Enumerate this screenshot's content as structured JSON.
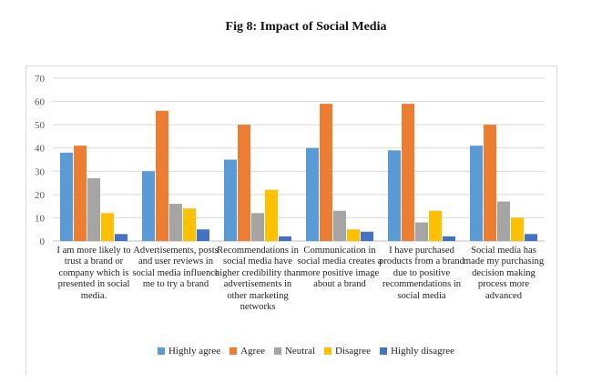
{
  "figure_title": "Fig 8: Impact of Social Media",
  "chart_data": {
    "type": "bar",
    "title": "Fig 8: Impact of Social Media",
    "xlabel": "",
    "ylabel": "",
    "ylim": [
      0,
      70
    ],
    "yticks": [
      0,
      10,
      20,
      30,
      40,
      50,
      60,
      70
    ],
    "grid": true,
    "legend_position": "bottom",
    "categories": [
      "I am more likely to trust a brand or company which is presented in social media.",
      "Advertisements, posts and user reviews in social media influence me to try a brand",
      "Recommendations in social media have higher credibility than advertisements in other marketing networks",
      "Communication in social media creates a more positive image about a brand",
      "I have purchased products from a brand due to positive recommendations in social media",
      "Social media has made my purchasing decision making process more advanced"
    ],
    "series": [
      {
        "name": "Highly agree",
        "color": "#5B9BD5",
        "values": [
          38,
          30,
          35,
          40,
          39,
          41
        ]
      },
      {
        "name": "Agree",
        "color": "#ED7D31",
        "values": [
          41,
          56,
          50,
          59,
          59,
          50
        ]
      },
      {
        "name": "Neutral",
        "color": "#A5A5A5",
        "values": [
          27,
          16,
          12,
          13,
          8,
          17
        ]
      },
      {
        "name": "Disagree",
        "color": "#FFC000",
        "values": [
          12,
          14,
          22,
          5,
          13,
          10
        ]
      },
      {
        "name": "Highly disagree",
        "color": "#4472C4",
        "values": [
          3,
          5,
          2,
          4,
          2,
          3
        ]
      }
    ]
  }
}
